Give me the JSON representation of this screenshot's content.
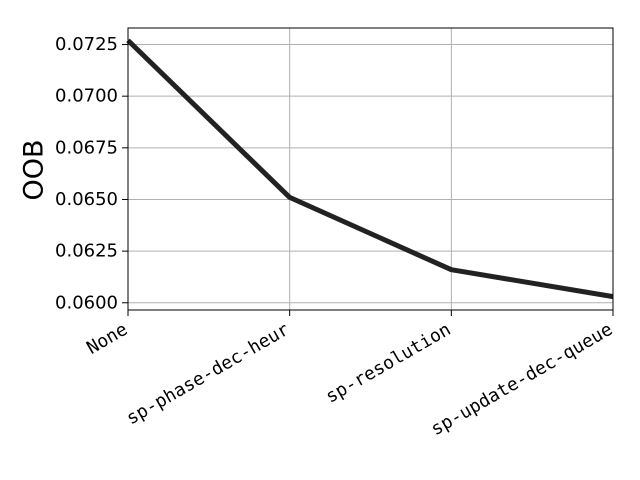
{
  "chart_data": {
    "type": "line",
    "title": "",
    "xlabel": "",
    "ylabel": "OOB",
    "categories": [
      "None",
      "sp-phase-dec-heur",
      "sp-resolution",
      "sp-update-dec-queue"
    ],
    "series": [
      {
        "values": [
          0.0727,
          0.0651,
          0.0616,
          0.0603
        ]
      }
    ],
    "ylim": [
      0.05965,
      0.0733
    ],
    "yticks": [
      0.06,
      0.0625,
      0.065,
      0.0675,
      0.07,
      0.0725
    ],
    "ytick_labels": [
      "0.0600",
      "0.0625",
      "0.0650",
      "0.0675",
      "0.0700",
      "0.0725"
    ],
    "grid": true,
    "legend": "none",
    "colors": {
      "line": "#222222",
      "grid": "#b0b0b0",
      "axes": "#000000"
    }
  }
}
